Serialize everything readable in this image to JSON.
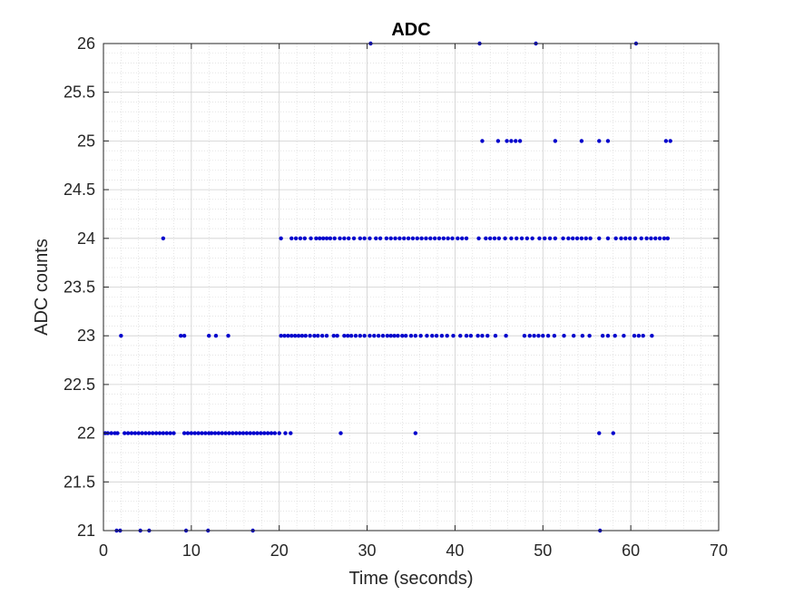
{
  "chart_data": {
    "type": "scatter",
    "title": "ADC",
    "xlabel": "Time (seconds)",
    "ylabel": "ADC counts",
    "xlim": [
      0,
      70
    ],
    "ylim": [
      21,
      26
    ],
    "xticks": [
      "0",
      "10",
      "20",
      "30",
      "40",
      "50",
      "60",
      "70"
    ],
    "yticks": [
      "21",
      "21.5",
      "22",
      "22.5",
      "23",
      "23.5",
      "24",
      "24.5",
      "25",
      "25.5",
      "26"
    ],
    "grid": true,
    "minor_grid": true,
    "marker_color": "#0000cc",
    "series": [
      {
        "points": [
          [
            1.5,
            21
          ],
          [
            1.9,
            21
          ],
          [
            4.2,
            21
          ],
          [
            5.2,
            21
          ],
          [
            9.4,
            21
          ],
          [
            11.9,
            21
          ],
          [
            17.0,
            21
          ],
          [
            56.5,
            21
          ],
          [
            0.2,
            22
          ],
          [
            0.5,
            22
          ],
          [
            0.9,
            22
          ],
          [
            1.3,
            22
          ],
          [
            1.6,
            22
          ],
          [
            2.4,
            22
          ],
          [
            2.8,
            22
          ],
          [
            3.2,
            22
          ],
          [
            3.6,
            22
          ],
          [
            4.0,
            22
          ],
          [
            4.4,
            22
          ],
          [
            4.8,
            22
          ],
          [
            5.2,
            22
          ],
          [
            5.6,
            22
          ],
          [
            6.0,
            22
          ],
          [
            6.4,
            22
          ],
          [
            6.8,
            22
          ],
          [
            7.2,
            22
          ],
          [
            7.6,
            22
          ],
          [
            8.0,
            22
          ],
          [
            9.2,
            22
          ],
          [
            9.6,
            22
          ],
          [
            10.0,
            22
          ],
          [
            10.4,
            22
          ],
          [
            10.8,
            22
          ],
          [
            11.2,
            22
          ],
          [
            11.6,
            22
          ],
          [
            12.0,
            22
          ],
          [
            12.3,
            22
          ],
          [
            12.7,
            22
          ],
          [
            13.1,
            22
          ],
          [
            13.5,
            22
          ],
          [
            13.9,
            22
          ],
          [
            14.3,
            22
          ],
          [
            14.7,
            22
          ],
          [
            15.1,
            22
          ],
          [
            15.5,
            22
          ],
          [
            15.9,
            22
          ],
          [
            16.3,
            22
          ],
          [
            16.7,
            22
          ],
          [
            17.1,
            22
          ],
          [
            17.5,
            22
          ],
          [
            17.9,
            22
          ],
          [
            18.3,
            22
          ],
          [
            18.7,
            22
          ],
          [
            19.1,
            22
          ],
          [
            19.5,
            22
          ],
          [
            20.0,
            22
          ],
          [
            20.7,
            22
          ],
          [
            21.3,
            22
          ],
          [
            27.0,
            22
          ],
          [
            35.5,
            22
          ],
          [
            56.4,
            22
          ],
          [
            58.0,
            22
          ],
          [
            2.0,
            23
          ],
          [
            8.8,
            23
          ],
          [
            9.2,
            23
          ],
          [
            12.0,
            23
          ],
          [
            12.8,
            23
          ],
          [
            14.2,
            23
          ],
          [
            20.2,
            23
          ],
          [
            20.6,
            23
          ],
          [
            21.0,
            23
          ],
          [
            21.4,
            23
          ],
          [
            21.8,
            23
          ],
          [
            22.2,
            23
          ],
          [
            22.6,
            23
          ],
          [
            23.0,
            23
          ],
          [
            23.5,
            23
          ],
          [
            24.0,
            23
          ],
          [
            24.4,
            23
          ],
          [
            24.9,
            23
          ],
          [
            25.4,
            23
          ],
          [
            26.2,
            23
          ],
          [
            26.6,
            23
          ],
          [
            27.4,
            23
          ],
          [
            27.8,
            23
          ],
          [
            28.2,
            23
          ],
          [
            28.7,
            23
          ],
          [
            29.2,
            23
          ],
          [
            29.7,
            23
          ],
          [
            30.3,
            23
          ],
          [
            30.8,
            23
          ],
          [
            31.3,
            23
          ],
          [
            31.8,
            23
          ],
          [
            32.3,
            23
          ],
          [
            32.7,
            23
          ],
          [
            33.1,
            23
          ],
          [
            33.5,
            23
          ],
          [
            34.0,
            23
          ],
          [
            34.4,
            23
          ],
          [
            35.0,
            23
          ],
          [
            35.5,
            23
          ],
          [
            36.1,
            23
          ],
          [
            36.8,
            23
          ],
          [
            37.4,
            23
          ],
          [
            37.9,
            23
          ],
          [
            38.5,
            23
          ],
          [
            39.1,
            23
          ],
          [
            39.8,
            23
          ],
          [
            40.6,
            23
          ],
          [
            41.3,
            23
          ],
          [
            41.8,
            23
          ],
          [
            42.6,
            23
          ],
          [
            43.1,
            23
          ],
          [
            43.7,
            23
          ],
          [
            44.6,
            23
          ],
          [
            45.8,
            23
          ],
          [
            47.9,
            23
          ],
          [
            48.5,
            23
          ],
          [
            49.0,
            23
          ],
          [
            49.5,
            23
          ],
          [
            50.0,
            23
          ],
          [
            50.6,
            23
          ],
          [
            51.3,
            23
          ],
          [
            52.4,
            23
          ],
          [
            53.5,
            23
          ],
          [
            54.5,
            23
          ],
          [
            55.3,
            23
          ],
          [
            56.8,
            23
          ],
          [
            57.4,
            23
          ],
          [
            58.2,
            23
          ],
          [
            59.2,
            23
          ],
          [
            60.4,
            23
          ],
          [
            60.9,
            23
          ],
          [
            61.4,
            23
          ],
          [
            62.4,
            23
          ],
          [
            6.8,
            24
          ],
          [
            20.2,
            24
          ],
          [
            21.4,
            24
          ],
          [
            21.9,
            24
          ],
          [
            22.4,
            24
          ],
          [
            22.9,
            24
          ],
          [
            23.6,
            24
          ],
          [
            24.2,
            24
          ],
          [
            24.6,
            24
          ],
          [
            25.0,
            24
          ],
          [
            25.4,
            24
          ],
          [
            25.8,
            24
          ],
          [
            26.3,
            24
          ],
          [
            26.9,
            24
          ],
          [
            27.4,
            24
          ],
          [
            27.9,
            24
          ],
          [
            28.5,
            24
          ],
          [
            29.2,
            24
          ],
          [
            29.7,
            24
          ],
          [
            30.3,
            24
          ],
          [
            31.0,
            24
          ],
          [
            31.5,
            24
          ],
          [
            32.2,
            24
          ],
          [
            32.7,
            24
          ],
          [
            33.2,
            24
          ],
          [
            33.7,
            24
          ],
          [
            34.2,
            24
          ],
          [
            34.7,
            24
          ],
          [
            35.2,
            24
          ],
          [
            35.7,
            24
          ],
          [
            36.2,
            24
          ],
          [
            36.7,
            24
          ],
          [
            37.2,
            24
          ],
          [
            37.7,
            24
          ],
          [
            38.2,
            24
          ],
          [
            38.7,
            24
          ],
          [
            39.2,
            24
          ],
          [
            39.7,
            24
          ],
          [
            40.3,
            24
          ],
          [
            40.8,
            24
          ],
          [
            41.3,
            24
          ],
          [
            42.7,
            24
          ],
          [
            43.5,
            24
          ],
          [
            44.0,
            24
          ],
          [
            44.5,
            24
          ],
          [
            45.0,
            24
          ],
          [
            45.7,
            24
          ],
          [
            46.4,
            24
          ],
          [
            47.0,
            24
          ],
          [
            47.6,
            24
          ],
          [
            48.2,
            24
          ],
          [
            48.8,
            24
          ],
          [
            49.6,
            24
          ],
          [
            50.2,
            24
          ],
          [
            50.8,
            24
          ],
          [
            51.4,
            24
          ],
          [
            52.3,
            24
          ],
          [
            52.9,
            24
          ],
          [
            53.4,
            24
          ],
          [
            53.9,
            24
          ],
          [
            54.4,
            24
          ],
          [
            54.9,
            24
          ],
          [
            55.4,
            24
          ],
          [
            56.4,
            24
          ],
          [
            57.4,
            24
          ],
          [
            58.3,
            24
          ],
          [
            58.9,
            24
          ],
          [
            59.4,
            24
          ],
          [
            59.9,
            24
          ],
          [
            60.5,
            24
          ],
          [
            61.2,
            24
          ],
          [
            61.8,
            24
          ],
          [
            62.3,
            24
          ],
          [
            62.8,
            24
          ],
          [
            63.3,
            24
          ],
          [
            63.8,
            24
          ],
          [
            64.2,
            24
          ],
          [
            43.1,
            25
          ],
          [
            44.9,
            25
          ],
          [
            45.9,
            25
          ],
          [
            46.4,
            25
          ],
          [
            46.9,
            25
          ],
          [
            47.4,
            25
          ],
          [
            51.4,
            25
          ],
          [
            54.4,
            25
          ],
          [
            56.4,
            25
          ],
          [
            57.4,
            25
          ],
          [
            64.0,
            25
          ],
          [
            64.5,
            25
          ],
          [
            30.4,
            26
          ],
          [
            42.8,
            26
          ],
          [
            49.2,
            26
          ],
          [
            60.6,
            26
          ]
        ]
      }
    ]
  }
}
